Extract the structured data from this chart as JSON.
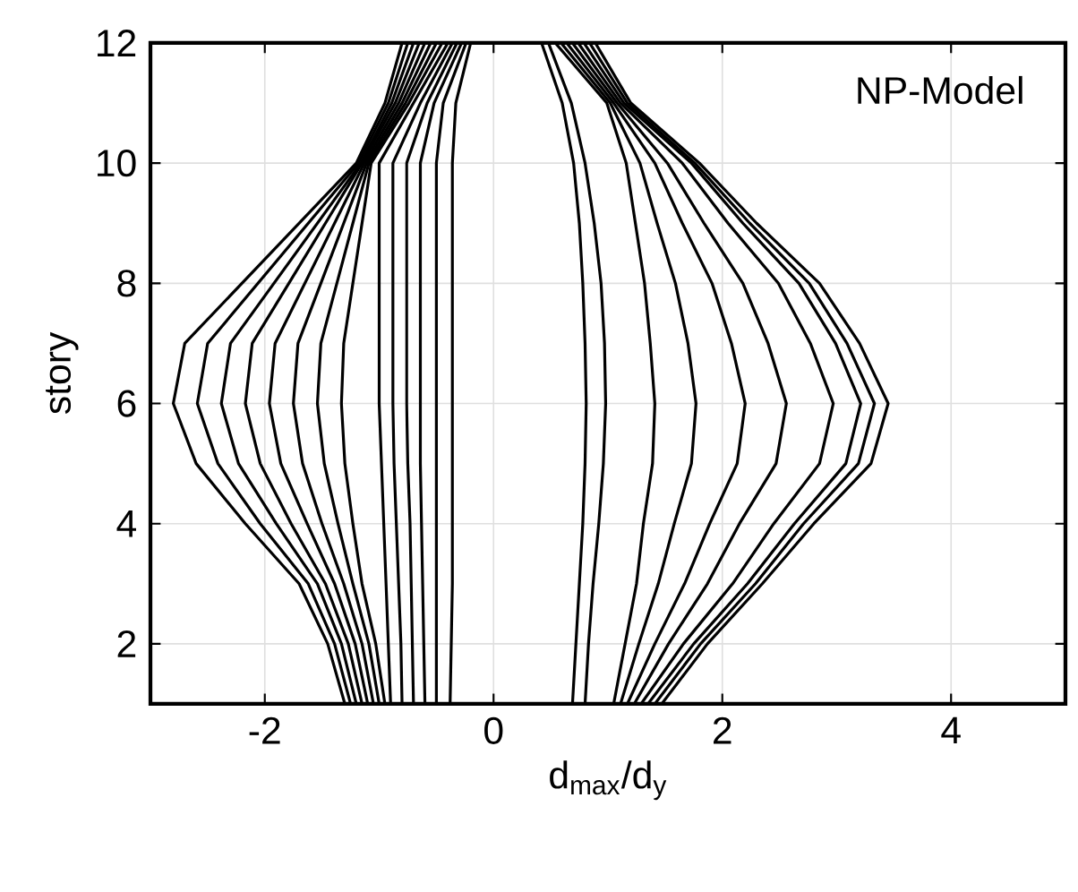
{
  "chart_data": {
    "type": "line",
    "xlabel": "d$_{max}$/d$_{y}$",
    "ylabel": "story",
    "annotations": [
      "NP-Model"
    ],
    "xlim": [
      -3,
      5
    ],
    "ylim": [
      1,
      12
    ],
    "xticks": [
      -2,
      0,
      2,
      4
    ],
    "yticks": [
      2,
      4,
      6,
      8,
      10,
      12
    ],
    "grid": true,
    "line_style": "solid",
    "series": [
      {
        "color": "#000000",
        "x": [
          -1.3,
          -1.45,
          -1.7,
          -2.17,
          -2.6,
          -2.8,
          -2.7,
          -2.2,
          -1.7,
          -1.2,
          -0.95,
          -0.8
        ],
        "values": [
          1,
          2,
          3,
          4,
          5,
          6,
          7,
          8,
          9,
          10,
          11,
          12
        ]
      },
      {
        "color": "#000000",
        "x": [
          -1.25,
          -1.39,
          -1.62,
          -2.04,
          -2.41,
          -2.59,
          -2.5,
          -2.06,
          -1.62,
          -1.18,
          -0.92,
          -0.75
        ],
        "values": [
          1,
          2,
          3,
          4,
          5,
          6,
          7,
          8,
          9,
          10,
          11,
          12
        ]
      },
      {
        "color": "#000000",
        "x": [
          -1.2,
          -1.33,
          -1.54,
          -1.9,
          -2.23,
          -2.38,
          -2.3,
          -1.92,
          -1.54,
          -1.16,
          -0.89,
          -0.7
        ],
        "values": [
          1,
          2,
          3,
          4,
          5,
          6,
          7,
          8,
          9,
          10,
          11,
          12
        ]
      },
      {
        "color": "#000000",
        "x": [
          -1.15,
          -1.27,
          -1.47,
          -1.77,
          -2.04,
          -2.17,
          -2.11,
          -1.79,
          -1.47,
          -1.15,
          -0.86,
          -0.65
        ],
        "values": [
          1,
          2,
          3,
          4,
          5,
          6,
          7,
          8,
          9,
          10,
          11,
          12
        ]
      },
      {
        "color": "#000000",
        "x": [
          -1.1,
          -1.21,
          -1.39,
          -1.63,
          -1.86,
          -1.96,
          -1.91,
          -1.65,
          -1.39,
          -1.13,
          -0.83,
          -0.6
        ],
        "values": [
          1,
          2,
          3,
          4,
          5,
          6,
          7,
          8,
          9,
          10,
          11,
          12
        ]
      },
      {
        "color": "#000000",
        "x": [
          -1.05,
          -1.15,
          -1.31,
          -1.5,
          -1.67,
          -1.75,
          -1.71,
          -1.51,
          -1.31,
          -1.11,
          -0.8,
          -0.55
        ],
        "values": [
          1,
          2,
          3,
          4,
          5,
          6,
          7,
          8,
          9,
          10,
          11,
          12
        ]
      },
      {
        "color": "#000000",
        "x": [
          -1.0,
          -1.09,
          -1.23,
          -1.36,
          -1.48,
          -1.54,
          -1.51,
          -1.37,
          -1.23,
          -1.09,
          -0.77,
          -0.5
        ],
        "values": [
          1,
          2,
          3,
          4,
          5,
          6,
          7,
          8,
          9,
          10,
          11,
          12
        ]
      },
      {
        "color": "#000000",
        "x": [
          -0.95,
          -1.03,
          -1.15,
          -1.23,
          -1.3,
          -1.33,
          -1.31,
          -1.23,
          -1.15,
          -1.07,
          -0.74,
          -0.45
        ],
        "values": [
          1,
          2,
          3,
          4,
          5,
          6,
          7,
          8,
          9,
          10,
          11,
          12
        ]
      },
      {
        "color": "#000000",
        "x": [
          -0.9,
          -0.92,
          -0.94,
          -0.96,
          -0.98,
          -1.0,
          -1.0,
          -1.0,
          -1.0,
          -1.0,
          -0.7,
          -0.4
        ],
        "values": [
          1,
          2,
          3,
          4,
          5,
          6,
          7,
          8,
          9,
          10,
          11,
          12
        ]
      },
      {
        "color": "#000000",
        "x": [
          -0.8,
          -0.81,
          -0.83,
          -0.85,
          -0.87,
          -0.88,
          -0.88,
          -0.88,
          -0.88,
          -0.88,
          -0.64,
          -0.36
        ],
        "values": [
          1,
          2,
          3,
          4,
          5,
          6,
          7,
          8,
          9,
          10,
          11,
          12
        ]
      },
      {
        "color": "#000000",
        "x": [
          -0.7,
          -0.71,
          -0.72,
          -0.73,
          -0.75,
          -0.76,
          -0.76,
          -0.76,
          -0.76,
          -0.76,
          -0.58,
          -0.32
        ],
        "values": [
          1,
          2,
          3,
          4,
          5,
          6,
          7,
          8,
          9,
          10,
          11,
          12
        ]
      },
      {
        "color": "#000000",
        "x": [
          -0.6,
          -0.61,
          -0.62,
          -0.63,
          -0.64,
          -0.64,
          -0.64,
          -0.64,
          -0.64,
          -0.64,
          -0.52,
          -0.28
        ],
        "values": [
          1,
          2,
          3,
          4,
          5,
          6,
          7,
          8,
          9,
          10,
          11,
          12
        ]
      },
      {
        "color": "#000000",
        "x": [
          -0.5,
          -0.5,
          -0.5,
          -0.5,
          -0.5,
          -0.5,
          -0.5,
          -0.5,
          -0.5,
          -0.5,
          -0.44,
          -0.24
        ],
        "values": [
          1,
          2,
          3,
          4,
          5,
          6,
          7,
          8,
          9,
          10,
          11,
          12
        ]
      },
      {
        "color": "#000000",
        "x": [
          -0.38,
          -0.37,
          -0.36,
          -0.36,
          -0.36,
          -0.36,
          -0.36,
          -0.36,
          -0.36,
          -0.36,
          -0.33,
          -0.2
        ],
        "values": [
          1,
          2,
          3,
          4,
          5,
          6,
          7,
          8,
          9,
          10,
          11,
          12
        ]
      },
      {
        "color": "#000000",
        "x": [
          0.69,
          0.72,
          0.75,
          0.78,
          0.8,
          0.81,
          0.8,
          0.78,
          0.75,
          0.7,
          0.6,
          0.42
        ],
        "values": [
          1,
          2,
          3,
          4,
          5,
          6,
          7,
          8,
          9,
          10,
          11,
          12
        ]
      },
      {
        "color": "#000000",
        "x": [
          0.8,
          0.83,
          0.87,
          0.92,
          0.96,
          0.98,
          0.97,
          0.94,
          0.88,
          0.8,
          0.68,
          0.48
        ],
        "values": [
          1,
          2,
          3,
          4,
          5,
          6,
          7,
          8,
          9,
          10,
          11,
          12
        ]
      },
      {
        "color": "#000000",
        "x": [
          1.05,
          1.15,
          1.25,
          1.31,
          1.39,
          1.41,
          1.37,
          1.32,
          1.24,
          1.16,
          0.99,
          0.54
        ],
        "values": [
          1,
          2,
          3,
          4,
          5,
          6,
          7,
          8,
          9,
          10,
          11,
          12
        ]
      },
      {
        "color": "#000000",
        "x": [
          1.11,
          1.27,
          1.44,
          1.58,
          1.73,
          1.77,
          1.7,
          1.59,
          1.43,
          1.28,
          1.02,
          0.59
        ],
        "values": [
          1,
          2,
          3,
          4,
          5,
          6,
          7,
          8,
          9,
          10,
          11,
          12
        ]
      },
      {
        "color": "#000000",
        "x": [
          1.17,
          1.41,
          1.67,
          1.89,
          2.13,
          2.2,
          2.08,
          1.91,
          1.65,
          1.41,
          1.05,
          0.64
        ],
        "values": [
          1,
          2,
          3,
          4,
          5,
          6,
          7,
          8,
          9,
          10,
          11,
          12
        ]
      },
      {
        "color": "#000000",
        "x": [
          1.23,
          1.53,
          1.87,
          2.15,
          2.47,
          2.56,
          2.4,
          2.18,
          1.84,
          1.52,
          1.08,
          0.69
        ],
        "values": [
          1,
          2,
          3,
          4,
          5,
          6,
          7,
          8,
          9,
          10,
          11,
          12
        ]
      },
      {
        "color": "#000000",
        "x": [
          1.29,
          1.66,
          2.09,
          2.45,
          2.85,
          2.97,
          2.77,
          2.49,
          2.05,
          1.65,
          1.11,
          0.74
        ],
        "values": [
          1,
          2,
          3,
          4,
          5,
          6,
          7,
          8,
          9,
          10,
          11,
          12
        ]
      },
      {
        "color": "#000000",
        "x": [
          1.35,
          1.75,
          2.22,
          2.63,
          3.08,
          3.21,
          2.99,
          2.67,
          2.18,
          1.73,
          1.14,
          0.79
        ],
        "values": [
          1,
          2,
          3,
          4,
          5,
          6,
          7,
          8,
          9,
          10,
          11,
          12
        ]
      },
      {
        "color": "#000000",
        "x": [
          1.41,
          1.81,
          2.29,
          2.71,
          3.19,
          3.33,
          3.09,
          2.76,
          2.24,
          1.76,
          1.17,
          0.84
        ],
        "values": [
          1,
          2,
          3,
          4,
          5,
          6,
          7,
          8,
          9,
          10,
          11,
          12
        ]
      },
      {
        "color": "#000000",
        "x": [
          1.47,
          1.87,
          2.35,
          2.8,
          3.3,
          3.45,
          3.2,
          2.85,
          2.3,
          1.8,
          1.2,
          0.89
        ],
        "values": [
          1,
          2,
          3,
          4,
          5,
          6,
          7,
          8,
          9,
          10,
          11,
          12
        ]
      }
    ]
  }
}
